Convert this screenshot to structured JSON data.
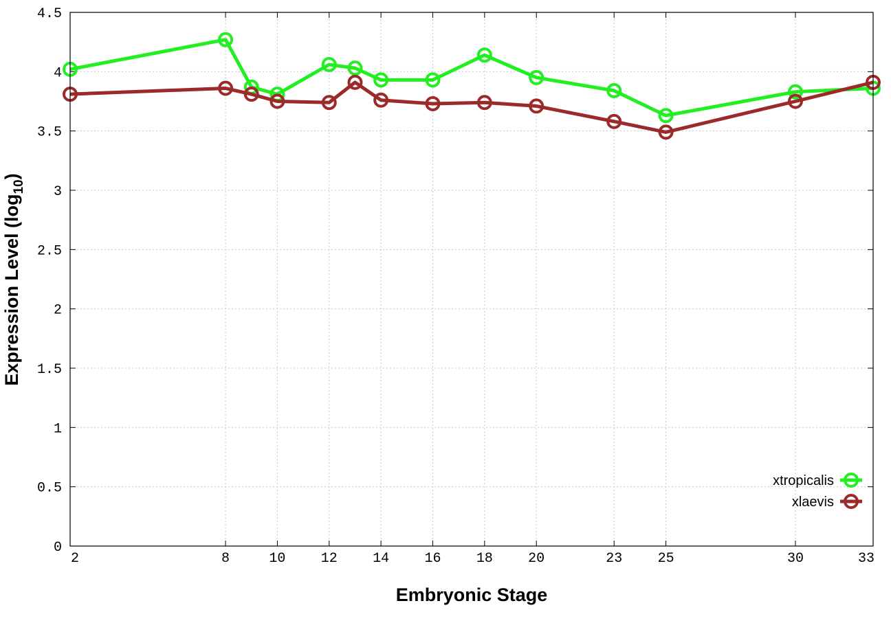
{
  "chart_data": {
    "type": "line",
    "xlabel": "Embryonic Stage",
    "ylabel_main": "Expression Level (log",
    "ylabel_sub": "10",
    "ylabel_close": ")",
    "x": [
      2,
      8,
      9,
      10,
      12,
      13,
      14,
      16,
      18,
      20,
      23,
      25,
      30,
      33
    ],
    "xticks": [
      2,
      8,
      10,
      12,
      14,
      16,
      18,
      20,
      23,
      25,
      30,
      33
    ],
    "xlim": [
      2,
      33
    ],
    "yticks": [
      "0",
      "0.5",
      "1",
      "1.5",
      "2",
      "2.5",
      "3",
      "3.5",
      "4",
      "4.5"
    ],
    "ylim": [
      0,
      4.5
    ],
    "grid": true,
    "legend_position": "bottom-right",
    "series": [
      {
        "name": "xtropicalis",
        "color": "#22ee22",
        "values": [
          4.02,
          4.27,
          3.87,
          3.81,
          4.06,
          4.03,
          3.93,
          3.93,
          4.14,
          3.95,
          3.84,
          3.63,
          3.83,
          3.86
        ]
      },
      {
        "name": "xlaevis",
        "color": "#9b2a2a",
        "values": [
          3.81,
          3.86,
          3.81,
          3.75,
          3.74,
          3.91,
          3.76,
          3.73,
          3.74,
          3.71,
          3.58,
          3.49,
          3.75,
          3.91
        ]
      }
    ]
  }
}
